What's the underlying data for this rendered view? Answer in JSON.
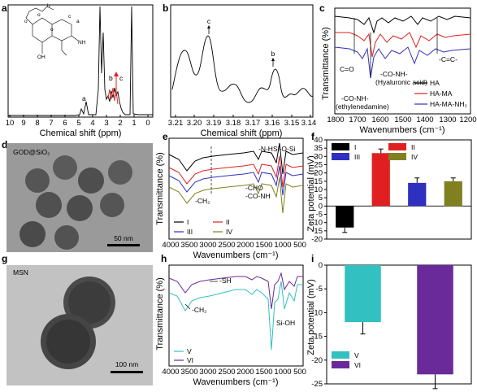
{
  "panels": {
    "a": {
      "letter": "a",
      "xlabel": "Chemical shift (ppm)",
      "xticks": [
        "10",
        "9",
        "8",
        "7",
        "6",
        "5",
        "4",
        "3",
        "2",
        "1",
        "0"
      ],
      "peak_labels": [
        "a",
        "b",
        "c"
      ],
      "struct_labels": [
        "b",
        "a",
        "c",
        "o",
        "o",
        "o",
        "OH",
        "NH"
      ]
    },
    "b": {
      "letter": "b",
      "xlabel": "Chemical shift (ppm)",
      "xticks": [
        "3.21",
        "3.20",
        "3.19",
        "3.18",
        "3.17",
        "3.16",
        "3.15",
        "3.14"
      ],
      "peak_labels": [
        "c",
        "b"
      ]
    },
    "c": {
      "letter": "c",
      "ylabel": "Transmittance (%)",
      "xlabel": "Wavenumbers (cm⁻¹)",
      "xticks": [
        "1800",
        "1700",
        "1600",
        "1500",
        "1400",
        "1300",
        "1200"
      ],
      "annotations": [
        "C=O",
        "-CO-NH-",
        "(Hyaluronic acid)",
        "-C=C-",
        "-CO-NH-",
        "(ethylenedamine)"
      ],
      "legend": [
        "HA",
        "HA-MA",
        "HA-MA-NH₂"
      ]
    },
    "d": {
      "letter": "d",
      "caption": "GOD@SiO₂",
      "scalebar": "50 nm"
    },
    "e": {
      "letter": "e",
      "ylabel": "Transmittance (%)",
      "xlabel": "Wavenumbers (cm⁻¹)",
      "xticks": [
        "4000",
        "3500",
        "3000",
        "2500",
        "2000",
        "1500",
        "1000",
        "500"
      ],
      "annotations": [
        "-N-H",
        "Si-O-Si",
        "-CHO",
        "-CO-NH",
        "-CH₂"
      ],
      "legend": [
        "I",
        "II",
        "III",
        "IV"
      ]
    },
    "f": {
      "letter": "f",
      "ylabel": "Zeta potential (mV)",
      "yticks": [
        "40",
        "35",
        "30",
        "25",
        "20",
        "15",
        "10",
        "5",
        "0",
        "-5",
        "-10",
        "-15",
        "-20"
      ],
      "legend": [
        "I",
        "II",
        "III",
        "IV"
      ]
    },
    "g": {
      "letter": "g",
      "caption": "MSN",
      "scalebar": "100 nm"
    },
    "h": {
      "letter": "h",
      "ylabel": "Transmittance (%)",
      "xlabel": "Wavenumbers (cm⁻¹)",
      "xticks": [
        "4000",
        "3500",
        "3000",
        "2500",
        "2000",
        "1500",
        "1000",
        "500"
      ],
      "annotations": [
        "-SH",
        "-CH₂",
        "Si-OH"
      ],
      "legend": [
        "V",
        "VI"
      ]
    },
    "i": {
      "letter": "i",
      "ylabel": "Zeta potential (mV)",
      "yticks": [
        "0",
        "-5",
        "-10",
        "-15",
        "-20",
        "-25"
      ],
      "legend": [
        "V",
        "VI"
      ]
    }
  },
  "colors": {
    "black": "#000000",
    "red": "#e02020",
    "blue": "#3030c0",
    "olive": "#808020",
    "cyan": "#33c0c0",
    "purple": "#6a2a9a"
  },
  "chart_data": [
    {
      "panel": "f",
      "type": "bar",
      "categories": [
        "I",
        "II",
        "III",
        "IV"
      ],
      "values": [
        -13,
        32,
        14,
        15
      ],
      "errors": [
        3,
        2.5,
        3,
        2
      ],
      "ylabel": "Zeta potential (mV)",
      "ylim": [
        -20,
        40
      ],
      "colors": [
        "#000000",
        "#e02020",
        "#3030c0",
        "#808020"
      ]
    },
    {
      "panel": "i",
      "type": "bar",
      "categories": [
        "V",
        "VI"
      ],
      "values": [
        -12,
        -23
      ],
      "errors": [
        2.5,
        3
      ],
      "ylabel": "Zeta potential (mV)",
      "ylim": [
        -25,
        0
      ],
      "colors": [
        "#33c0c0",
        "#6a2a9a"
      ]
    }
  ]
}
